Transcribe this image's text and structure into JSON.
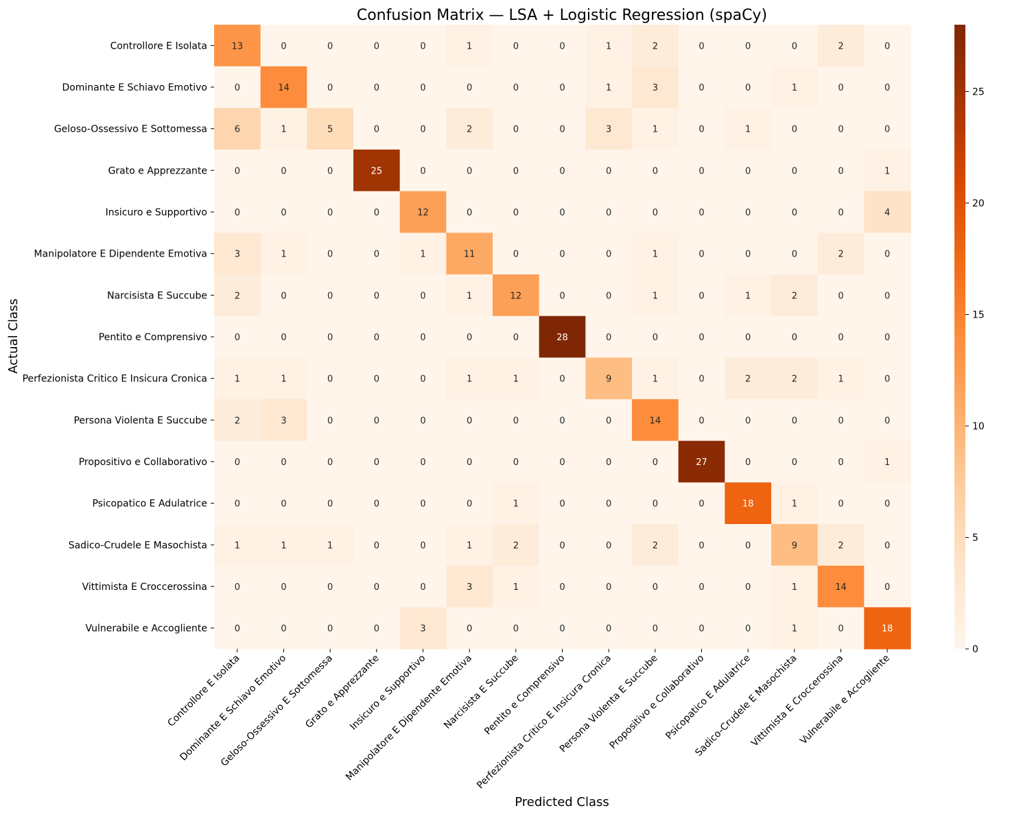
{
  "chart_data": {
    "type": "heatmap",
    "title": "Confusion Matrix — LSA + Logistic Regression (spaCy)",
    "xlabel": "Predicted Class",
    "ylabel": "Actual Class",
    "classes": [
      "Controllore E Isolata",
      "Dominante E Schiavo Emotivo",
      "Geloso-Ossessivo E Sottomessa",
      "Grato e Apprezzante",
      "Insicuro e Supportivo",
      "Manipolatore E Dipendente Emotiva",
      "Narcisista E Succube",
      "Pentito e Comprensivo",
      "Perfezionista Critico E Insicura Cronica",
      "Persona Violenta E Succube",
      "Propositivo e Collaborativo",
      "Psicopatico E Adulatrice",
      "Sadico-Crudele E Masochista",
      "Vittimista E Croccerossina",
      "Vulnerabile e Accogliente"
    ],
    "matrix": [
      [
        13,
        0,
        0,
        0,
        0,
        1,
        0,
        0,
        1,
        2,
        0,
        0,
        0,
        2,
        0
      ],
      [
        0,
        14,
        0,
        0,
        0,
        0,
        0,
        0,
        1,
        3,
        0,
        0,
        1,
        0,
        0
      ],
      [
        6,
        1,
        5,
        0,
        0,
        2,
        0,
        0,
        3,
        1,
        0,
        1,
        0,
        0,
        0
      ],
      [
        0,
        0,
        0,
        25,
        0,
        0,
        0,
        0,
        0,
        0,
        0,
        0,
        0,
        0,
        1
      ],
      [
        0,
        0,
        0,
        0,
        12,
        0,
        0,
        0,
        0,
        0,
        0,
        0,
        0,
        0,
        4
      ],
      [
        3,
        1,
        0,
        0,
        1,
        11,
        0,
        0,
        0,
        1,
        0,
        0,
        0,
        2,
        0
      ],
      [
        2,
        0,
        0,
        0,
        0,
        1,
        12,
        0,
        0,
        1,
        0,
        1,
        2,
        0,
        0
      ],
      [
        0,
        0,
        0,
        0,
        0,
        0,
        0,
        28,
        0,
        0,
        0,
        0,
        0,
        0,
        0
      ],
      [
        1,
        1,
        0,
        0,
        0,
        1,
        1,
        0,
        9,
        1,
        0,
        2,
        2,
        1,
        0
      ],
      [
        2,
        3,
        0,
        0,
        0,
        0,
        0,
        0,
        0,
        14,
        0,
        0,
        0,
        0,
        0
      ],
      [
        0,
        0,
        0,
        0,
        0,
        0,
        0,
        0,
        0,
        0,
        27,
        0,
        0,
        0,
        1
      ],
      [
        0,
        0,
        0,
        0,
        0,
        0,
        1,
        0,
        0,
        0,
        0,
        18,
        1,
        0,
        0
      ],
      [
        1,
        1,
        1,
        0,
        0,
        1,
        2,
        0,
        0,
        2,
        0,
        0,
        9,
        2,
        0
      ],
      [
        0,
        0,
        0,
        0,
        0,
        3,
        1,
        0,
        0,
        0,
        0,
        0,
        1,
        14,
        0
      ],
      [
        0,
        0,
        0,
        0,
        3,
        0,
        0,
        0,
        0,
        0,
        0,
        0,
        1,
        0,
        18
      ]
    ],
    "colorbar": {
      "colormap": "Oranges",
      "range": [
        0,
        28
      ],
      "ticks": [
        0,
        5,
        10,
        15,
        20,
        25
      ]
    },
    "annotations": true,
    "annotation_colors": {
      "dark": "#262626",
      "light": "#ffffff"
    }
  }
}
